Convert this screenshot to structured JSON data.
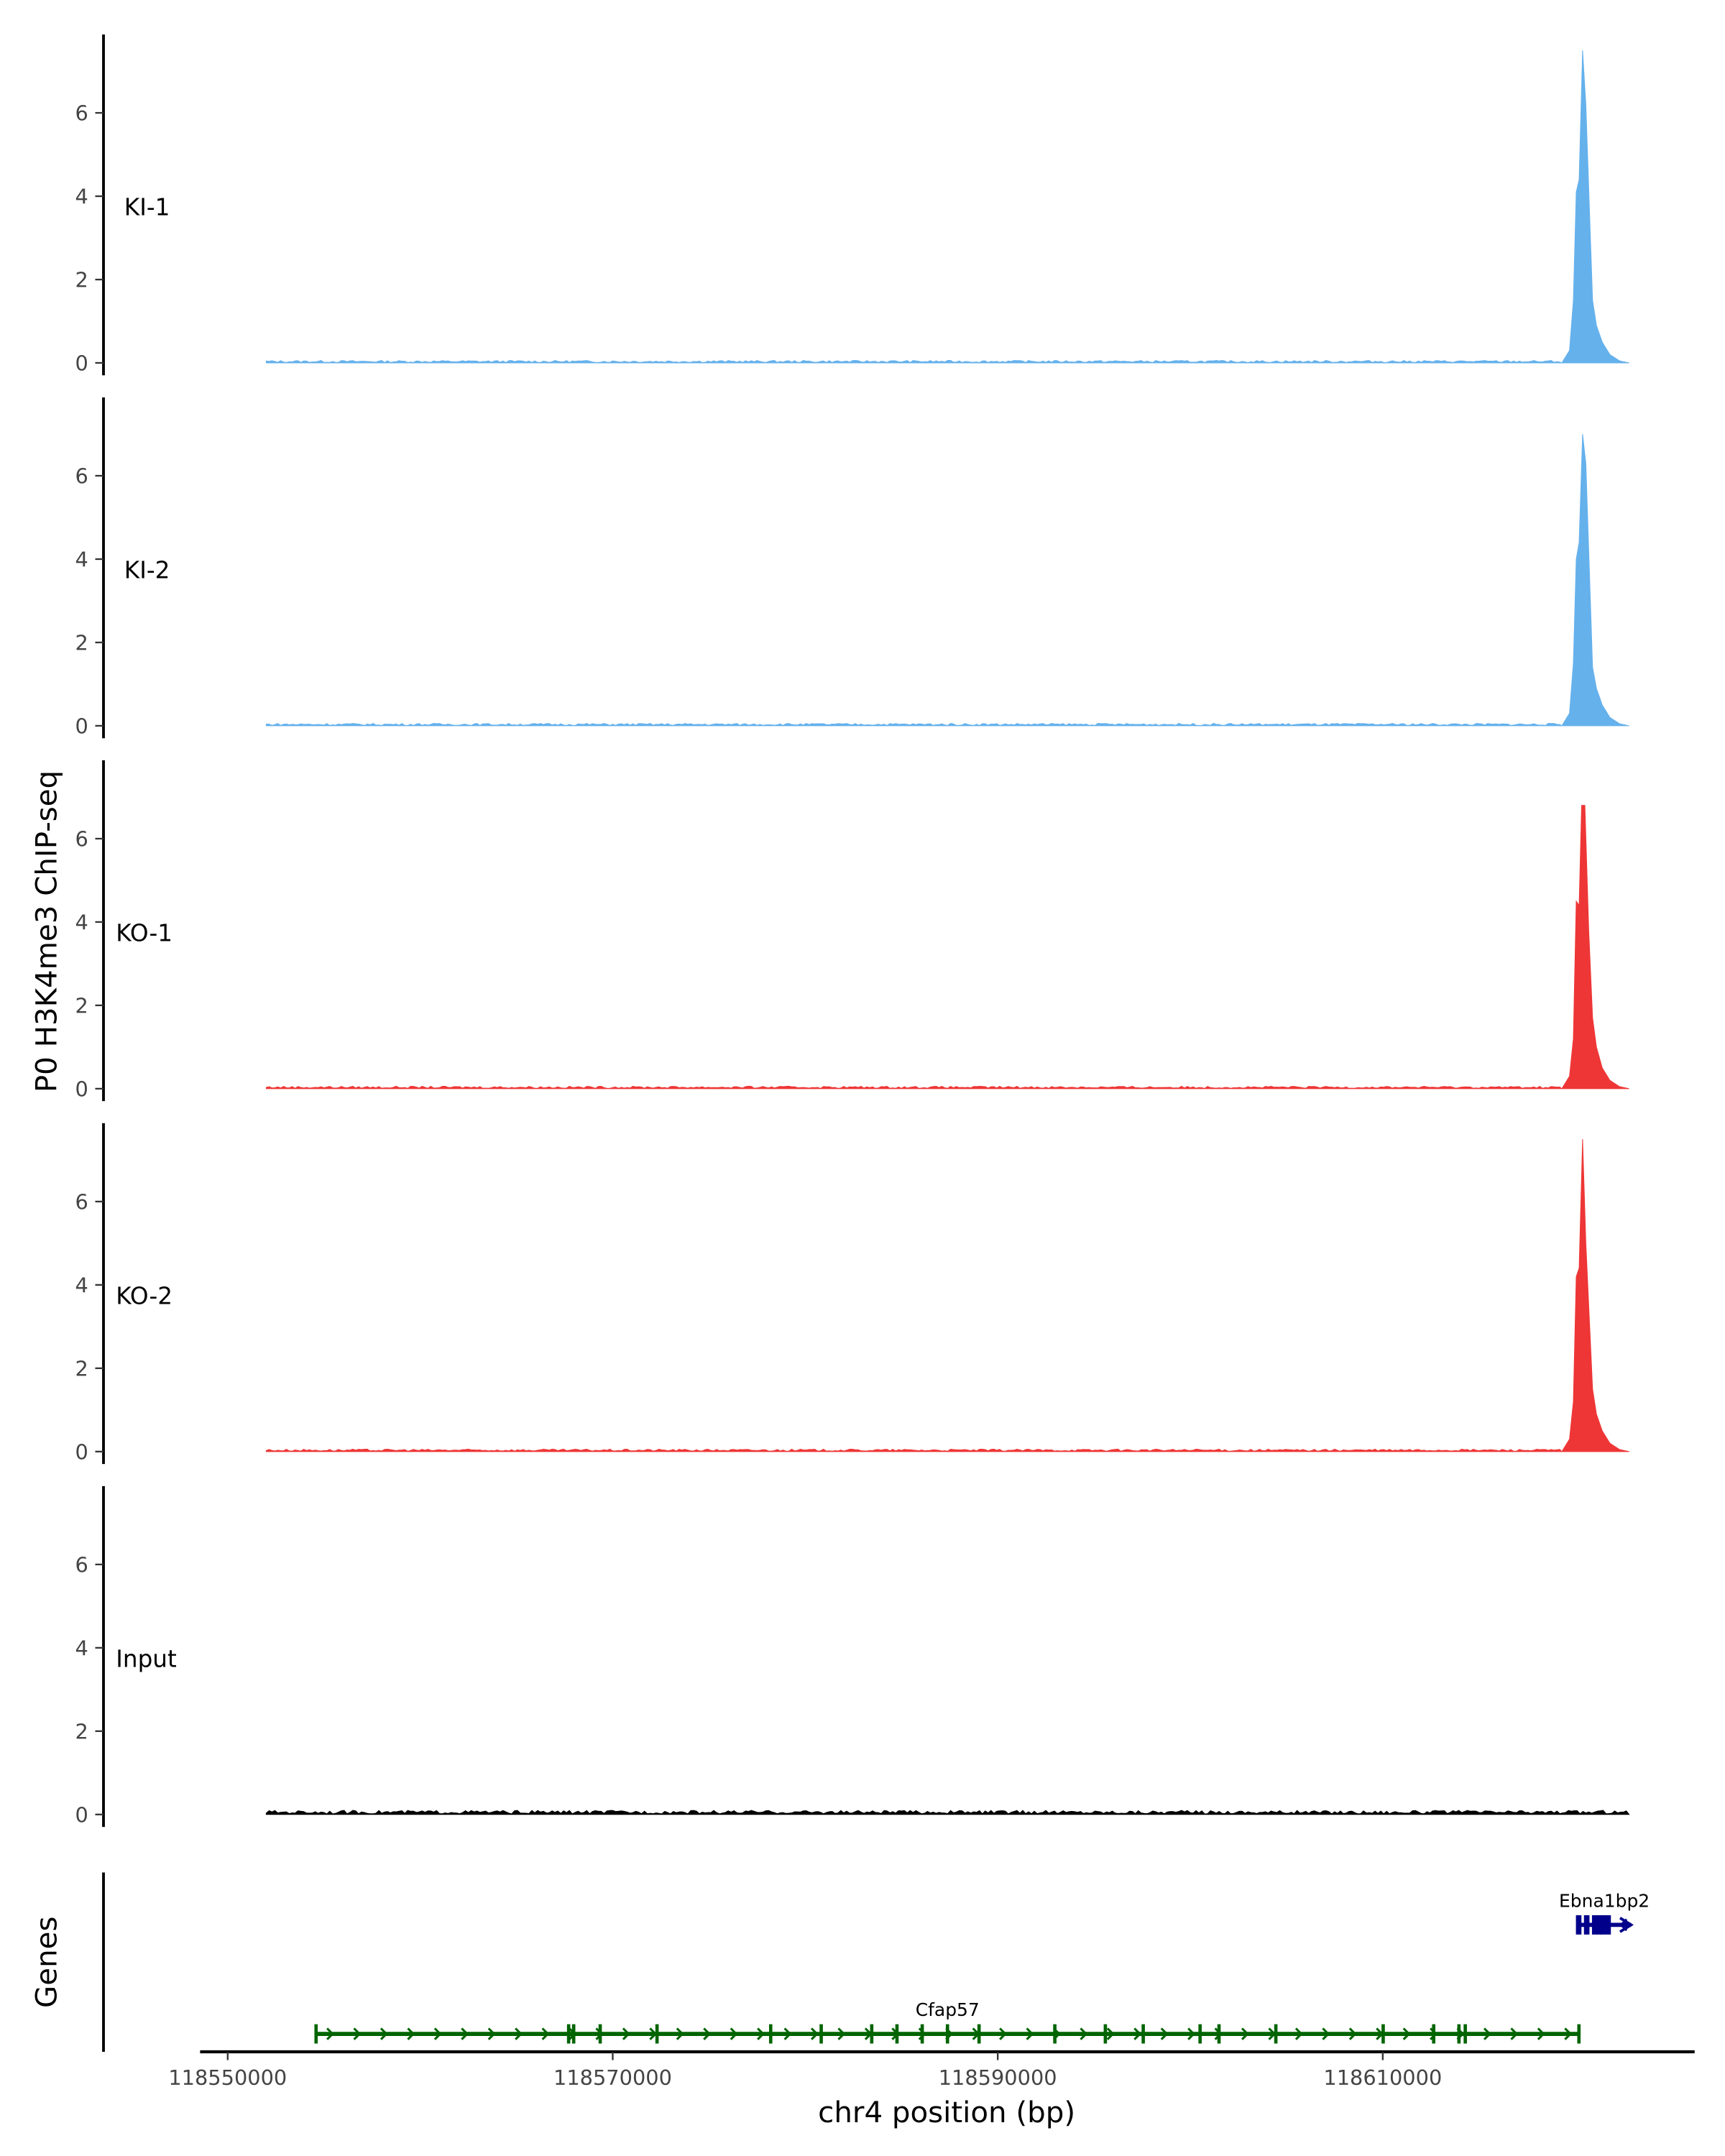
{
  "chart_data": {
    "type": "area",
    "ylabel": "P0 H3K4me3 ChIP-seq",
    "xlabel": "chr4 position (bp)",
    "genes_label": "Genes",
    "xlim": [
      118546000,
      118624000
    ],
    "ylim": [
      0,
      7.8
    ],
    "x_ticks": [
      118550000,
      118570000,
      118590000,
      118610000
    ],
    "x_tick_labels": [
      "118550000",
      "118570000",
      "118590000",
      "118610000"
    ],
    "y_ticks": [
      0,
      2,
      4,
      6
    ],
    "y_tick_labels": [
      "0",
      "2",
      "4",
      "6"
    ],
    "data_range": [
      118552000,
      118622800
    ],
    "tracks": [
      {
        "name": "KI-1",
        "color": "#5DADEC",
        "background": 0.03,
        "profile": [
          [
            118619300,
            0
          ],
          [
            118619700,
            0.3
          ],
          [
            118619900,
            1.5
          ],
          [
            118620050,
            4.1
          ],
          [
            118620200,
            4.4
          ],
          [
            118620380,
            7.5
          ],
          [
            118620550,
            6.2
          ],
          [
            118620750,
            3.5
          ],
          [
            118620900,
            1.5
          ],
          [
            118621100,
            0.9
          ],
          [
            118621400,
            0.5
          ],
          [
            118621800,
            0.2
          ],
          [
            118622300,
            0.05
          ],
          [
            118622800,
            0
          ]
        ]
      },
      {
        "name": "KI-2",
        "color": "#5DADEC",
        "background": 0.03,
        "profile": [
          [
            118619300,
            0
          ],
          [
            118619700,
            0.3
          ],
          [
            118619900,
            1.5
          ],
          [
            118620050,
            4.0
          ],
          [
            118620200,
            4.4
          ],
          [
            118620380,
            7.0
          ],
          [
            118620550,
            6.3
          ],
          [
            118620750,
            3.5
          ],
          [
            118620900,
            1.4
          ],
          [
            118621100,
            0.9
          ],
          [
            118621400,
            0.5
          ],
          [
            118621800,
            0.2
          ],
          [
            118622300,
            0.05
          ],
          [
            118622800,
            0
          ]
        ]
      },
      {
        "name": "KO-1",
        "color": "#EE2C2C",
        "background": 0.03,
        "profile": [
          [
            118619300,
            0
          ],
          [
            118619700,
            0.3
          ],
          [
            118619900,
            1.2
          ],
          [
            118620050,
            4.5
          ],
          [
            118620200,
            4.4
          ],
          [
            118620330,
            6.8
          ],
          [
            118620500,
            6.8
          ],
          [
            118620700,
            3.8
          ],
          [
            118620900,
            1.7
          ],
          [
            118621100,
            1.0
          ],
          [
            118621400,
            0.5
          ],
          [
            118621800,
            0.2
          ],
          [
            118622300,
            0.05
          ],
          [
            118622800,
            0
          ]
        ]
      },
      {
        "name": "KO-2",
        "color": "#EE2C2C",
        "background": 0.03,
        "profile": [
          [
            118619300,
            0
          ],
          [
            118619700,
            0.3
          ],
          [
            118619900,
            1.2
          ],
          [
            118620050,
            4.2
          ],
          [
            118620200,
            4.4
          ],
          [
            118620380,
            7.5
          ],
          [
            118620550,
            5.0
          ],
          [
            118620750,
            3.0
          ],
          [
            118620900,
            1.5
          ],
          [
            118621100,
            0.9
          ],
          [
            118621400,
            0.5
          ],
          [
            118621800,
            0.2
          ],
          [
            118622300,
            0.05
          ],
          [
            118622800,
            0
          ]
        ]
      },
      {
        "name": "Input",
        "color": "#000000",
        "background": 0.05,
        "profile": []
      }
    ],
    "genes": [
      {
        "name": "Cfap57",
        "start": 118554590,
        "end": 118620190,
        "strand": "-",
        "color": "#006400",
        "row": 2
      },
      {
        "name": "Ebna1bp2",
        "start": 118620120,
        "end": 118622900,
        "strand": "+",
        "color": "#00008B",
        "row": 1
      }
    ]
  }
}
